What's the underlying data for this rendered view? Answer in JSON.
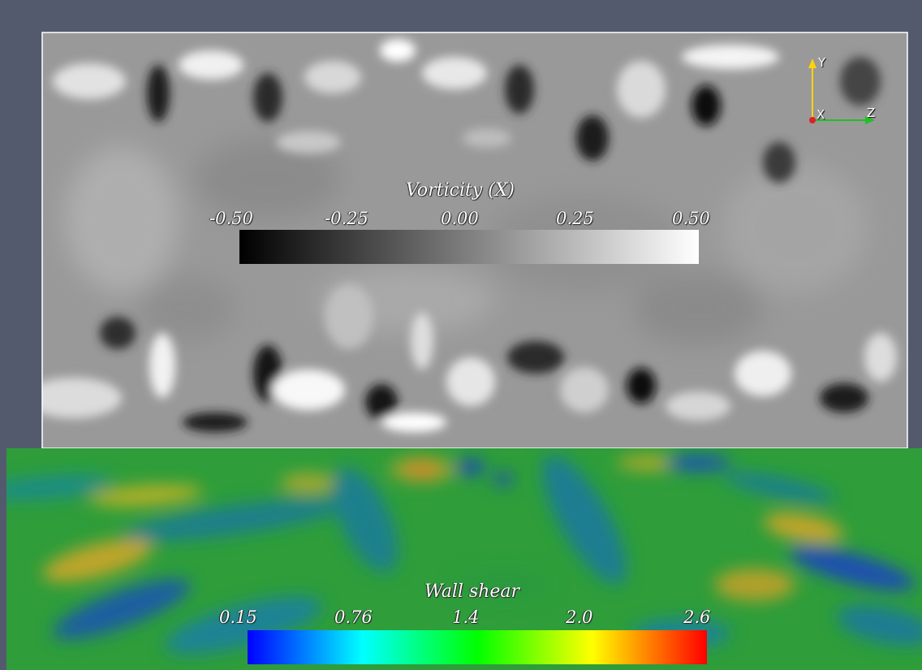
{
  "vorticity_colorbar": {
    "title": "Vorticity (X)",
    "ticks": [
      "-0.50",
      "-0.25",
      "0.00",
      "0.25",
      "0.50"
    ],
    "range": [
      -0.5,
      0.5
    ],
    "colors": [
      "#000000",
      "#ffffff"
    ]
  },
  "wall_shear_colorbar": {
    "title": "Wall shear",
    "ticks": [
      "0.15",
      "0.76",
      "1.4",
      "2.0",
      "2.6"
    ],
    "range": [
      0.15,
      2.6
    ],
    "colors": [
      "#0000ff",
      "#00ffff",
      "#00ff00",
      "#ffff00",
      "#ff0000"
    ]
  },
  "orientation_axes": {
    "y_label": "Y",
    "x_label": "X",
    "z_label": "Z",
    "colors": {
      "y": "#ffd400",
      "x": "#e02020",
      "z": "#20c020"
    }
  },
  "colors": {
    "background": "#535a6e",
    "frame": "#ffffff",
    "field_base": "#9a9a9a",
    "wall_base": "#2e9d3a"
  }
}
